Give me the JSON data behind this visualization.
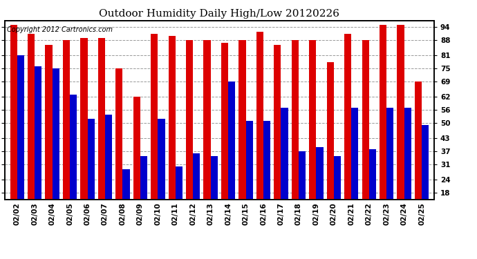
{
  "title": "Outdoor Humidity Daily High/Low 20120226",
  "copyright": "Copyright 2012 Cartronics.com",
  "dates": [
    "02/02",
    "02/03",
    "02/04",
    "02/05",
    "02/06",
    "02/07",
    "02/08",
    "02/09",
    "02/10",
    "02/11",
    "02/12",
    "02/13",
    "02/14",
    "02/15",
    "02/16",
    "02/17",
    "02/18",
    "02/19",
    "02/20",
    "02/21",
    "02/22",
    "02/23",
    "02/24",
    "02/25"
  ],
  "highs": [
    95,
    91,
    86,
    88,
    89,
    89,
    75,
    62,
    91,
    90,
    88,
    88,
    87,
    88,
    92,
    86,
    88,
    88,
    78,
    91,
    88,
    95,
    95,
    69
  ],
  "lows": [
    81,
    76,
    75,
    63,
    52,
    54,
    29,
    35,
    52,
    30,
    36,
    35,
    69,
    51,
    51,
    57,
    37,
    39,
    35,
    57,
    38,
    57,
    57,
    49
  ],
  "high_color": "#dd0000",
  "low_color": "#0000cc",
  "bg_color": "#ffffff",
  "plot_bg_color": "#ffffff",
  "grid_color": "#999999",
  "yticks": [
    18,
    24,
    31,
    37,
    43,
    50,
    56,
    62,
    69,
    75,
    81,
    88,
    94
  ],
  "ylim_min": 15,
  "ylim_max": 97,
  "title_fontsize": 11,
  "axis_fontsize": 7.5,
  "copyright_fontsize": 7
}
